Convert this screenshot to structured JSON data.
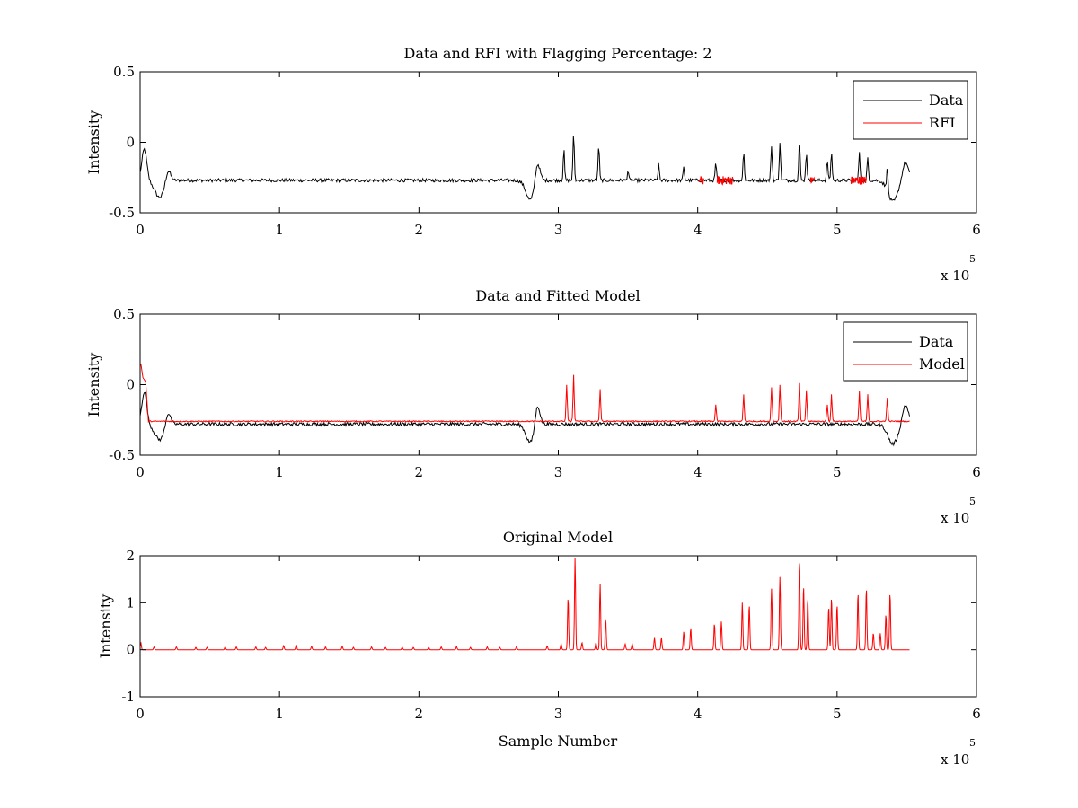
{
  "chart_data": [
    {
      "type": "line",
      "title": "Data and RFI with Flagging Percentage: 2",
      "xlabel": "",
      "ylabel": "Intensity",
      "xlim": [
        0,
        600000
      ],
      "ylim": [
        -0.5,
        0.5
      ],
      "xticks": [
        0,
        1,
        2,
        3,
        4,
        5,
        6
      ],
      "xtick_labels": [
        "0",
        "1",
        "2",
        "3",
        "4",
        "5",
        "6"
      ],
      "yticks": [
        -0.5,
        0,
        0.5
      ],
      "ytick_labels": [
        "-0.5",
        "0",
        "0.5"
      ],
      "x_exponent_base": "x 10",
      "x_exponent_power": "5",
      "legend_position": "top-right",
      "grid": false,
      "series": [
        {
          "name": "Data",
          "color": "#000000",
          "baseline": -0.27,
          "noise": 0.012,
          "x_end": 552000,
          "dips": [
            [
              3000,
              -0.05,
              2500
            ],
            [
              14000,
              -0.39,
              5000
            ],
            [
              20000,
              -0.18,
              2500
            ],
            [
              280000,
              -0.41,
              4500
            ],
            [
              285000,
              -0.12,
              2500
            ],
            [
              540000,
              -0.42,
              5000
            ],
            [
              549000,
              -0.14,
              3000
            ]
          ],
          "peaks": [
            [
              304000,
              -0.05
            ],
            [
              311000,
              0.06
            ],
            [
              329000,
              -0.02
            ],
            [
              350000,
              -0.2
            ],
            [
              372000,
              -0.16
            ],
            [
              390000,
              -0.18
            ],
            [
              413000,
              -0.15
            ],
            [
              433000,
              -0.07
            ],
            [
              453000,
              -0.02
            ],
            [
              459000,
              0.0
            ],
            [
              473000,
              0.0
            ],
            [
              478000,
              -0.07
            ],
            [
              493000,
              -0.13
            ],
            [
              496000,
              -0.07
            ],
            [
              516000,
              -0.08
            ],
            [
              522000,
              -0.11
            ],
            [
              536000,
              -0.09
            ]
          ]
        },
        {
          "name": "RFI",
          "color": "#ff0000",
          "segments": [
            [
              401000,
              404000
            ],
            [
              414000,
              425000
            ],
            [
              481000,
              484000
            ],
            [
              510000,
              521000
            ]
          ],
          "level": -0.27
        }
      ]
    },
    {
      "type": "line",
      "title": "Data and Fitted Model",
      "xlabel": "",
      "ylabel": "Intensity",
      "xlim": [
        0,
        600000
      ],
      "ylim": [
        -0.5,
        0.5
      ],
      "xticks": [
        0,
        1,
        2,
        3,
        4,
        5,
        6
      ],
      "xtick_labels": [
        "0",
        "1",
        "2",
        "3",
        "4",
        "5",
        "6"
      ],
      "yticks": [
        -0.5,
        0,
        0.5
      ],
      "ytick_labels": [
        "-0.5",
        "0",
        "0.5"
      ],
      "x_exponent_base": "x 10",
      "x_exponent_power": "5",
      "legend_position": "top-right",
      "grid": false,
      "series": [
        {
          "name": "Data",
          "color": "#000000",
          "baseline": -0.28,
          "noise": 0.012,
          "x_end": 552000
        },
        {
          "name": "Model",
          "color": "#ff0000",
          "baseline": -0.26,
          "start_values": [
            [
              500,
              0.15
            ],
            [
              2000,
              0.05
            ],
            [
              4000,
              0.02
            ]
          ],
          "peaks": [
            [
              306000,
              -0.0
            ],
            [
              311000,
              0.07
            ],
            [
              330000,
              -0.03
            ],
            [
              413000,
              -0.14
            ],
            [
              433000,
              -0.07
            ],
            [
              453000,
              -0.02
            ],
            [
              459000,
              0.0
            ],
            [
              473000,
              0.01
            ],
            [
              478000,
              -0.04
            ],
            [
              493000,
              -0.14
            ],
            [
              496000,
              -0.07
            ],
            [
              516000,
              -0.05
            ],
            [
              522000,
              -0.07
            ],
            [
              536000,
              -0.09
            ]
          ]
        }
      ]
    },
    {
      "type": "line",
      "title": "Original Model",
      "xlabel": "Sample Number",
      "ylabel": "Intensity",
      "xlim": [
        0,
        600000
      ],
      "ylim": [
        -1,
        2
      ],
      "xticks": [
        0,
        1,
        2,
        3,
        4,
        5,
        6
      ],
      "xtick_labels": [
        "0",
        "1",
        "2",
        "3",
        "4",
        "5",
        "6"
      ],
      "yticks": [
        -1,
        0,
        1,
        2
      ],
      "ytick_labels": [
        "-1",
        "0",
        "1",
        "2"
      ],
      "x_exponent_base": "x 10",
      "x_exponent_power": "5",
      "grid": false,
      "series": [
        {
          "color": "#ff0000",
          "baseline": 0,
          "x_end": 552000,
          "peaks": [
            [
              500,
              0.15
            ],
            [
              10000,
              0.06
            ],
            [
              26000,
              0.06
            ],
            [
              40000,
              0.05
            ],
            [
              48000,
              0.05
            ],
            [
              61000,
              0.06
            ],
            [
              69000,
              0.06
            ],
            [
              83000,
              0.06
            ],
            [
              90000,
              0.05
            ],
            [
              103000,
              0.09
            ],
            [
              112000,
              0.11
            ],
            [
              123000,
              0.07
            ],
            [
              133000,
              0.06
            ],
            [
              145000,
              0.07
            ],
            [
              153000,
              0.05
            ],
            [
              166000,
              0.06
            ],
            [
              176000,
              0.05
            ],
            [
              188000,
              0.05
            ],
            [
              196000,
              0.05
            ],
            [
              207000,
              0.05
            ],
            [
              216000,
              0.06
            ],
            [
              227000,
              0.07
            ],
            [
              237000,
              0.05
            ],
            [
              249000,
              0.06
            ],
            [
              258000,
              0.05
            ],
            [
              270000,
              0.07
            ],
            [
              292000,
              0.08
            ],
            [
              302000,
              0.12
            ],
            [
              307000,
              1.1
            ],
            [
              312000,
              1.95
            ],
            [
              317000,
              0.15
            ],
            [
              327000,
              0.15
            ],
            [
              330000,
              1.4
            ],
            [
              334000,
              0.65
            ],
            [
              348000,
              0.12
            ],
            [
              353000,
              0.12
            ],
            [
              369000,
              0.25
            ],
            [
              374000,
              0.25
            ],
            [
              390000,
              0.38
            ],
            [
              395000,
              0.45
            ],
            [
              412000,
              0.55
            ],
            [
              417000,
              0.6
            ],
            [
              432000,
              1.0
            ],
            [
              437000,
              0.95
            ],
            [
              453000,
              1.3
            ],
            [
              459000,
              1.55
            ],
            [
              473000,
              1.9
            ],
            [
              476000,
              1.35
            ],
            [
              479000,
              1.1
            ],
            [
              494000,
              0.9
            ],
            [
              496000,
              1.1
            ],
            [
              500000,
              0.95
            ],
            [
              515000,
              1.2
            ],
            [
              521000,
              1.3
            ],
            [
              526000,
              0.35
            ],
            [
              531000,
              0.35
            ],
            [
              535000,
              0.75
            ],
            [
              538000,
              1.2
            ]
          ]
        }
      ]
    }
  ]
}
